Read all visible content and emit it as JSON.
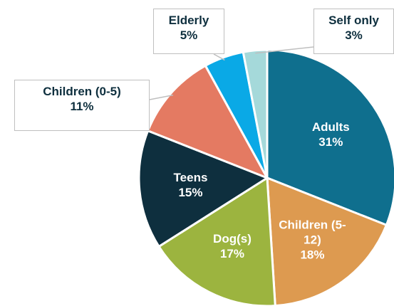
{
  "chart_data": {
    "type": "pie",
    "categories": [
      "Adults",
      "Children (5-12)",
      "Dog(s)",
      "Teens",
      "Children (0-5)",
      "Elderly",
      "Self only"
    ],
    "values": [
      31,
      18,
      17,
      15,
      11,
      5,
      3
    ],
    "value_labels": [
      "31%",
      "18%",
      "17%",
      "15%",
      "11%",
      "5%",
      "3%"
    ],
    "colors": [
      "#0f6f8e",
      "#dd9a50",
      "#9cb43f",
      "#0e2f3e",
      "#e47a62",
      "#0aa9e6",
      "#a5d9da"
    ]
  }
}
